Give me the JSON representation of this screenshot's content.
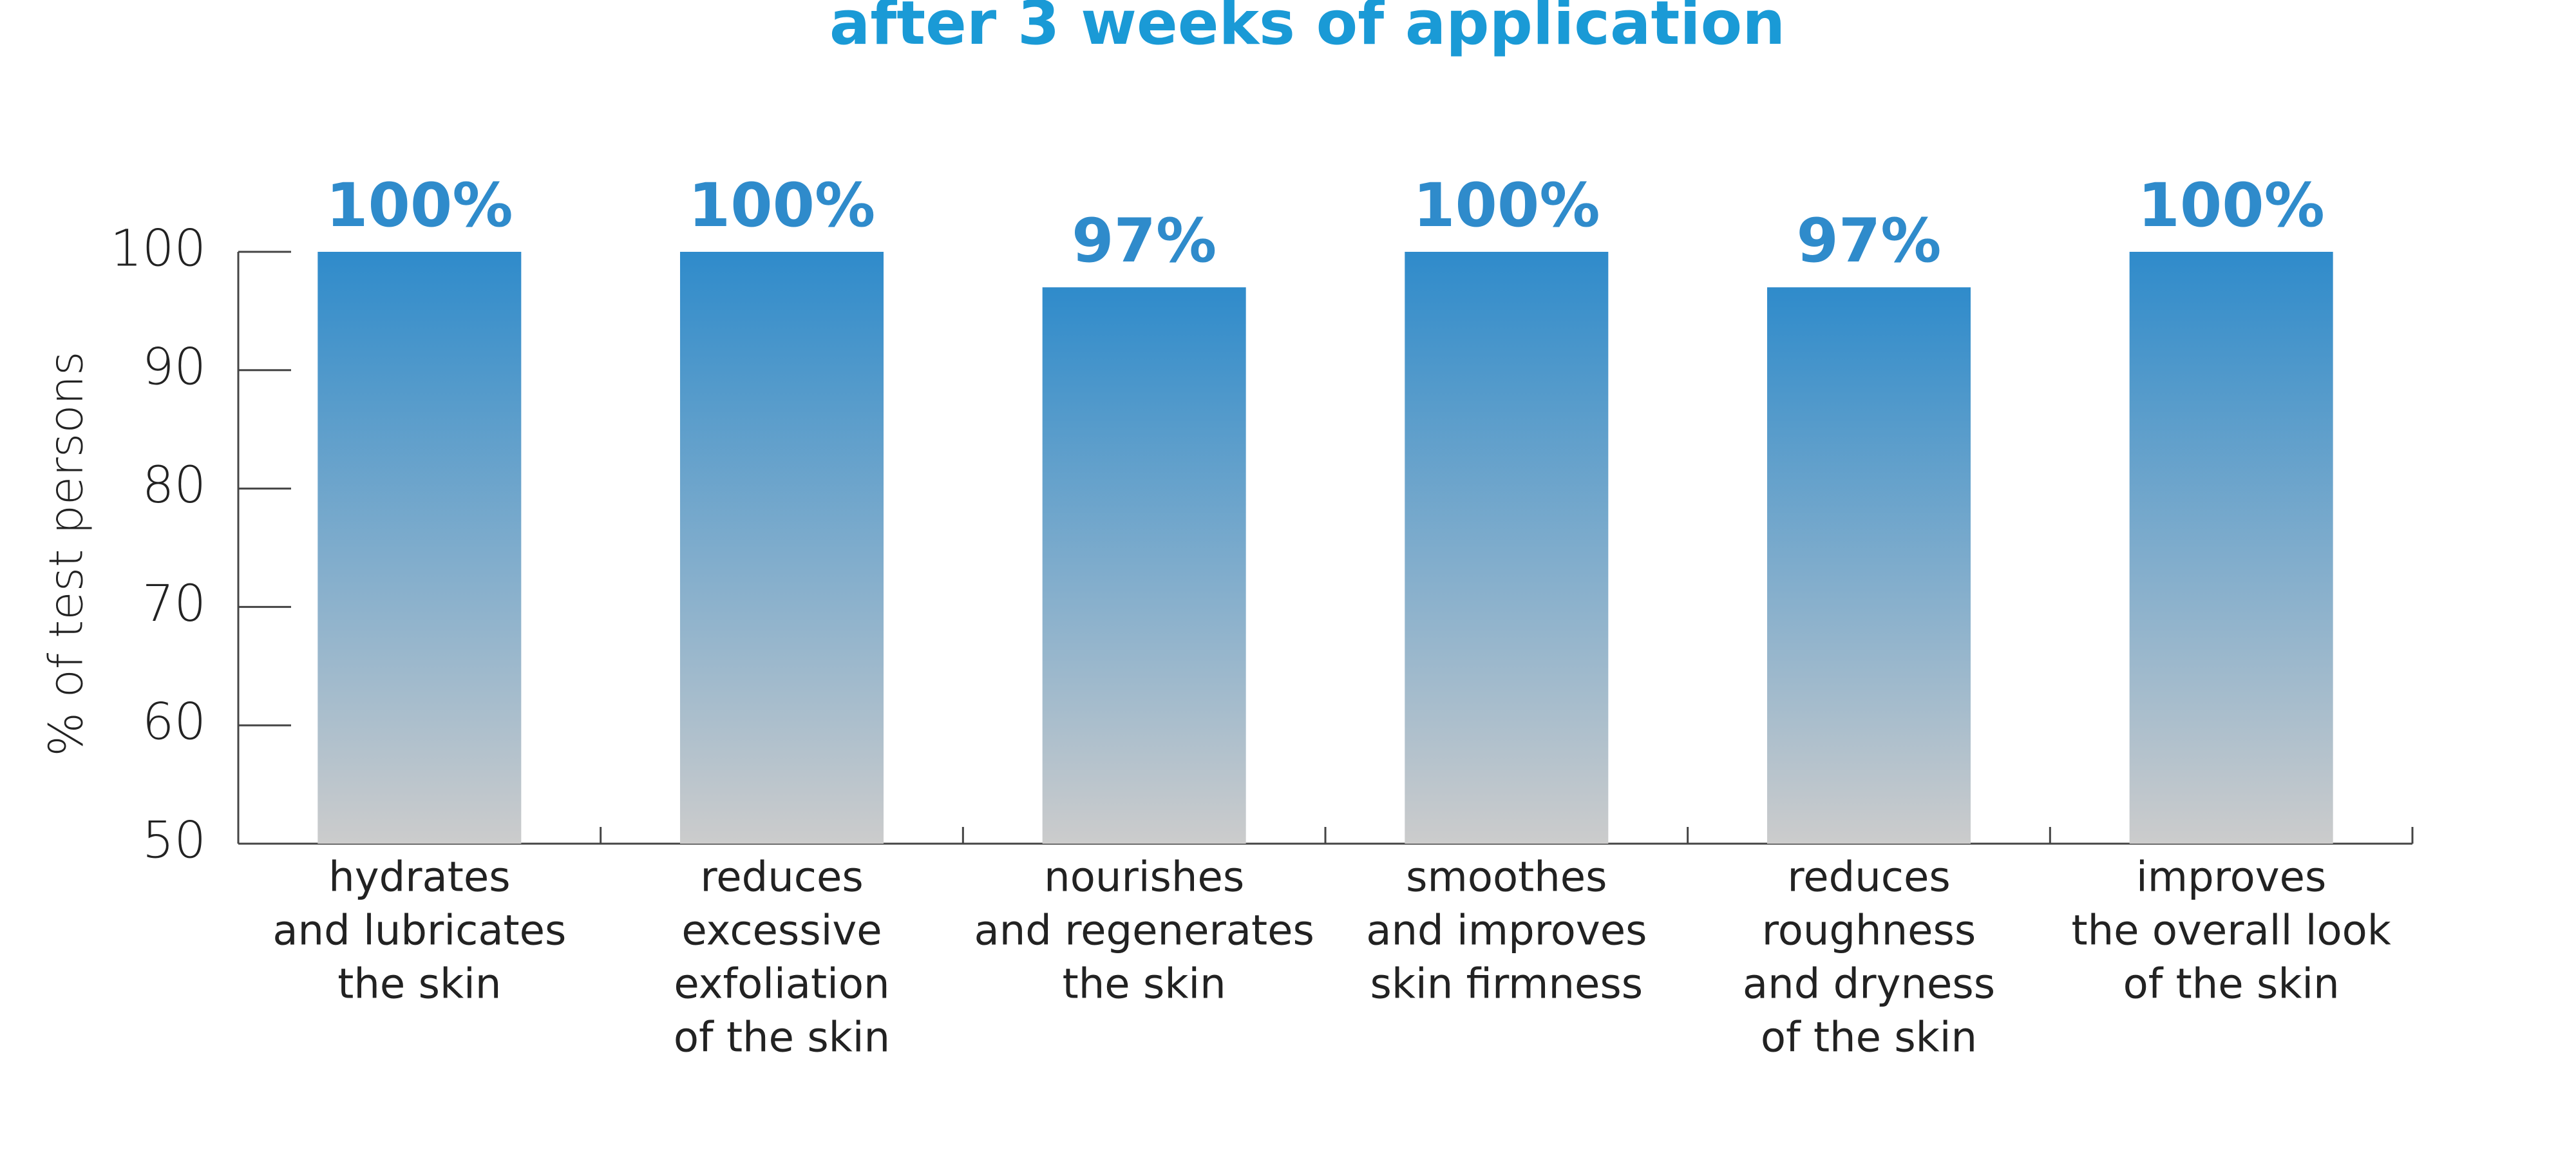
{
  "chart_data": {
    "type": "bar",
    "title": "after 3 weeks of application",
    "ylabel": "% of test persons",
    "categories": [
      [
        "hydrates",
        "and lubricates",
        "the skin"
      ],
      [
        "reduces",
        "excessive",
        "exfoliation",
        "of the skin"
      ],
      [
        "nourishes",
        "and regenerates",
        "the skin"
      ],
      [
        "smoothes",
        "and improves",
        "skin firmness"
      ],
      [
        "reduces",
        "roughness",
        "and dryness",
        "of the skin"
      ],
      [
        "improves",
        "the overall look",
        "of the skin"
      ]
    ],
    "values": [
      100,
      100,
      97,
      100,
      97,
      100
    ],
    "value_labels": [
      "100%",
      "100%",
      "97%",
      "100%",
      "97%",
      "100%"
    ],
    "gradient": {
      "top": "#2f8bcb",
      "bottom": "#cccccc"
    },
    "label_color": "#2f8bcb",
    "title_color": "#1a9ad6",
    "ylim": [
      50,
      100
    ],
    "yticks": [
      50,
      60,
      70,
      80,
      90,
      100
    ]
  }
}
